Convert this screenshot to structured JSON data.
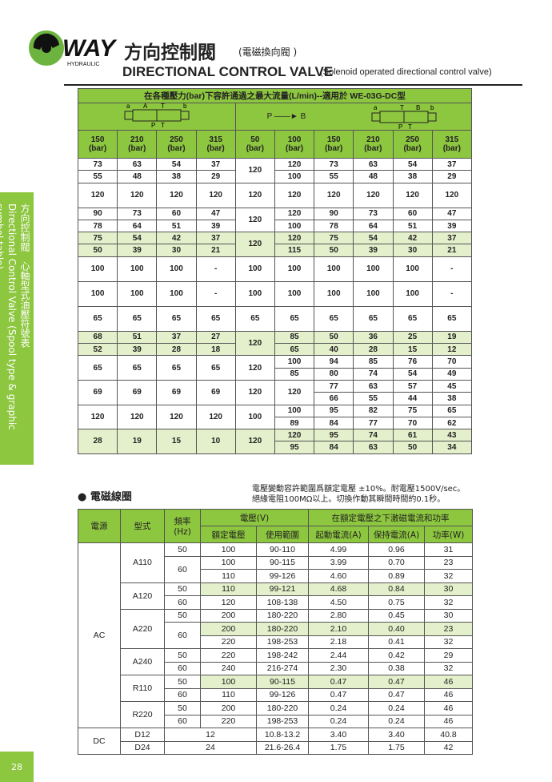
{
  "header": {
    "logo": "WAY",
    "logo_sub": "HYDRAULIC",
    "title_cn": "方向控制閥",
    "subtitle_cn": "(電磁換向閥 )",
    "title_en": "DIRECTIONAL CONTROL VALVE",
    "subtitle_en": "(Solenoid operated directional control valve)"
  },
  "side_tab": {
    "cn": "方向控制閥　心軸型式油壓符號表",
    "en": "Directional Control Valve (Spool type & graphic symbol table)"
  },
  "page_number": "28",
  "flow_table": {
    "title": "在各種壓力(bar)下容許通過之最大流量(L/min)--適用於 WE-03G-DC型",
    "symbol_left": {
      "top": [
        "a",
        "A",
        "T",
        "b"
      ],
      "bottom": [
        "P",
        "T"
      ]
    },
    "symbol_right": {
      "top": [
        "a",
        "T",
        "B",
        "b"
      ],
      "bottom": [
        "P",
        "T"
      ]
    },
    "flow_from": "P",
    "flow_to": "B",
    "pressures": [
      {
        "value": 150,
        "unit": "(bar)"
      },
      {
        "value": 210,
        "unit": "(bar)"
      },
      {
        "value": 250,
        "unit": "(bar)"
      },
      {
        "value": 315,
        "unit": "(bar)"
      },
      {
        "value": 50,
        "unit": "(bar)"
      },
      {
        "value": 100,
        "unit": "(bar)"
      },
      {
        "value": 150,
        "unit": "(bar)"
      },
      {
        "value": 210,
        "unit": "(bar)"
      },
      {
        "value": 250,
        "unit": "(bar)"
      },
      {
        "value": 315,
        "unit": "(bar)"
      }
    ],
    "groups": [
      {
        "cells": [
          [
            73,
            55
          ],
          [
            63,
            48
          ],
          [
            54,
            38
          ],
          [
            37,
            29
          ],
          120,
          [
            120,
            100
          ],
          [
            73,
            55
          ],
          [
            63,
            48
          ],
          [
            54,
            38
          ],
          [
            37,
            29
          ]
        ]
      },
      {
        "cells": [
          120,
          120,
          120,
          120,
          120,
          120,
          120,
          120,
          120,
          120
        ]
      },
      {
        "cells": [
          [
            90,
            78
          ],
          [
            73,
            64
          ],
          [
            60,
            51
          ],
          [
            47,
            39
          ],
          120,
          [
            120,
            100
          ],
          [
            90,
            78
          ],
          [
            73,
            64
          ],
          [
            60,
            51
          ],
          [
            47,
            39
          ]
        ]
      },
      {
        "cells": [
          [
            75,
            50
          ],
          [
            54,
            39
          ],
          [
            42,
            30
          ],
          [
            37,
            21
          ],
          120,
          [
            120,
            115
          ],
          [
            75,
            50
          ],
          [
            54,
            39
          ],
          [
            42,
            30
          ],
          [
            37,
            21
          ]
        ]
      },
      {
        "cells": [
          100,
          100,
          100,
          "-",
          100,
          100,
          100,
          100,
          100,
          "-"
        ]
      },
      {
        "cells": [
          100,
          100,
          100,
          "-",
          100,
          100,
          100,
          100,
          100,
          "-"
        ]
      },
      {
        "cells": [
          65,
          65,
          65,
          65,
          65,
          65,
          65,
          65,
          65,
          65
        ]
      },
      {
        "cells": [
          [
            68,
            52
          ],
          [
            51,
            39
          ],
          [
            37,
            28
          ],
          [
            27,
            18
          ],
          120,
          [
            85,
            65
          ],
          [
            50,
            40
          ],
          [
            36,
            28
          ],
          [
            25,
            15
          ],
          [
            19,
            12
          ]
        ]
      },
      {
        "cells": [
          65,
          65,
          65,
          65,
          120,
          [
            100,
            85
          ],
          [
            94,
            80
          ],
          [
            85,
            74
          ],
          [
            76,
            54
          ],
          [
            70,
            49
          ]
        ]
      },
      {
        "cells": [
          69,
          69,
          69,
          69,
          120,
          120,
          [
            77,
            66
          ],
          [
            63,
            55
          ],
          [
            57,
            44
          ],
          [
            45,
            38
          ]
        ]
      },
      {
        "cells": [
          120,
          120,
          120,
          120,
          100,
          [
            100,
            89
          ],
          [
            95,
            84
          ],
          [
            82,
            77
          ],
          [
            75,
            70
          ],
          [
            65,
            62
          ]
        ]
      },
      {
        "cells": [
          28,
          19,
          15,
          10,
          120,
          [
            120,
            95
          ],
          [
            95,
            84
          ],
          [
            74,
            63
          ],
          [
            61,
            50
          ],
          [
            43,
            34
          ]
        ]
      }
    ]
  },
  "coil": {
    "heading": "電磁線圈",
    "notes": [
      "電壓變動容許範圍爲額定電壓 ±10%。耐電壓1500V/sec。",
      "絕緣電阻100MΩ以上。切換作動其瞬間時間約0.1秒。"
    ],
    "headers": {
      "source": "電源",
      "model": "型式",
      "freq": "頻率",
      "freq_unit": "(Hz)",
      "voltage": "電壓(V)",
      "rated": "額定電壓",
      "range": "使用範圍",
      "current": "在額定電壓之下激磁電流和功率",
      "start": "起動電流(A)",
      "hold": "保持電流(A)",
      "power": "功率(W)"
    },
    "sources": [
      {
        "source": "AC",
        "models": [
          {
            "model": "A110",
            "freqs": [
              {
                "hz": "50",
                "rows": [
                  [
                    "100",
                    "90-110",
                    "4.99",
                    "0.96",
                    "31"
                  ]
                ]
              },
              {
                "hz": "60",
                "rows": [
                  [
                    "100",
                    "90-115",
                    "3.99",
                    "0.70",
                    "23"
                  ],
                  [
                    "110",
                    "99-126",
                    "4.60",
                    "0.89",
                    "32"
                  ]
                ]
              }
            ]
          },
          {
            "model": "A120",
            "freqs": [
              {
                "hz": "50",
                "rows": [
                  [
                    "110",
                    "99-121",
                    "4.68",
                    "0.84",
                    "30"
                  ]
                ]
              },
              {
                "hz": "60",
                "rows": [
                  [
                    "120",
                    "108-138",
                    "4.50",
                    "0.75",
                    "32"
                  ]
                ]
              }
            ]
          },
          {
            "model": "A220",
            "freqs": [
              {
                "hz": "50",
                "rows": [
                  [
                    "200",
                    "180-220",
                    "2.80",
                    "0.45",
                    "30"
                  ]
                ]
              },
              {
                "hz": "60",
                "rows": [
                  [
                    "200",
                    "180-220",
                    "2.10",
                    "0.40",
                    "23"
                  ],
                  [
                    "220",
                    "198-253",
                    "2.18",
                    "0.41",
                    "32"
                  ]
                ]
              }
            ]
          },
          {
            "model": "A240",
            "freqs": [
              {
                "hz": "50",
                "rows": [
                  [
                    "220",
                    "198-242",
                    "2.44",
                    "0.42",
                    "29"
                  ]
                ]
              },
              {
                "hz": "60",
                "rows": [
                  [
                    "240",
                    "216-274",
                    "2.30",
                    "0.38",
                    "32"
                  ]
                ]
              }
            ]
          },
          {
            "model": "R110",
            "freqs": [
              {
                "hz": "50",
                "rows": [
                  [
                    "100",
                    "90-115",
                    "0.47",
                    "0.47",
                    "46"
                  ]
                ]
              },
              {
                "hz": "60",
                "rows": [
                  [
                    "110",
                    "99-126",
                    "0.47",
                    "0.47",
                    "46"
                  ]
                ]
              }
            ]
          },
          {
            "model": "R220",
            "freqs": [
              {
                "hz": "50",
                "rows": [
                  [
                    "200",
                    "180-220",
                    "0.24",
                    "0.24",
                    "46"
                  ]
                ]
              },
              {
                "hz": "60",
                "rows": [
                  [
                    "220",
                    "198-253",
                    "0.24",
                    "0.24",
                    "46"
                  ]
                ]
              }
            ]
          }
        ]
      },
      {
        "source": "DC",
        "models": [
          {
            "model": "D12",
            "rows": [
              [
                "12",
                "10.8-13.2",
                "3.40",
                "3.40",
                "40.8"
              ]
            ]
          },
          {
            "model": "D24",
            "rows": [
              [
                "24",
                "21.6-26.4",
                "1.75",
                "1.75",
                "42"
              ]
            ]
          }
        ]
      }
    ]
  }
}
